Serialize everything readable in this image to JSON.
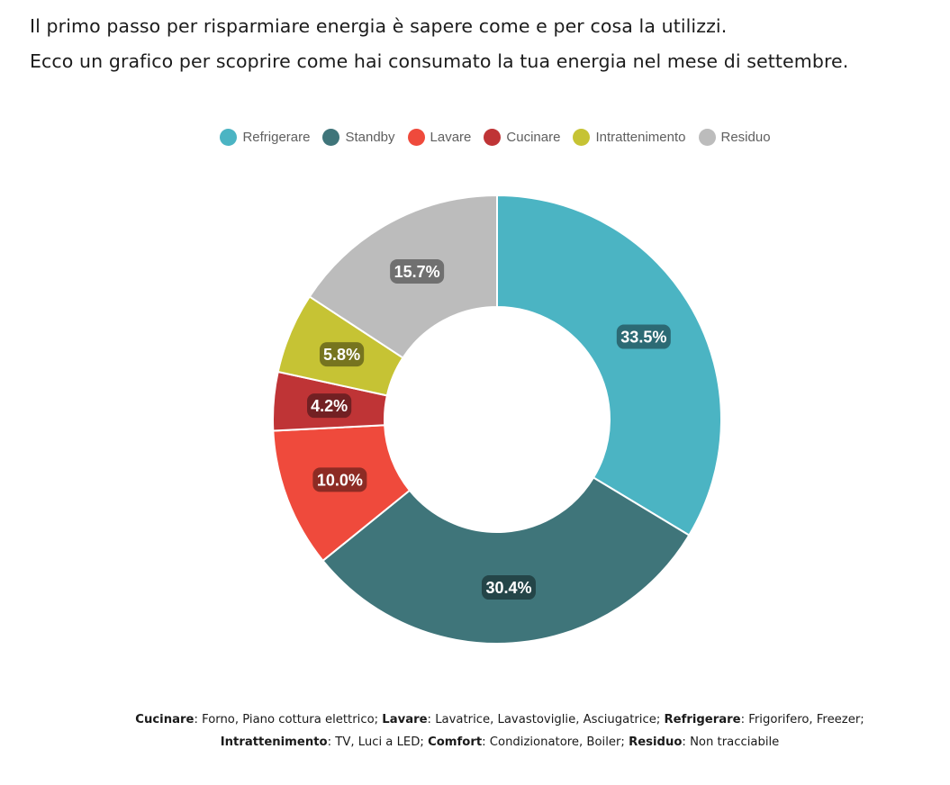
{
  "intro": {
    "line1": "Il primo passo per risparmiare energia è sapere come e per cosa la utilizzi.",
    "line2": "Ecco un grafico per scoprire come hai consumato la tua energia nel mese di settembre."
  },
  "legend": [
    {
      "label": "Refrigerare",
      "color": "#4bb4c3"
    },
    {
      "label": "Standby",
      "color": "#3f757a"
    },
    {
      "label": "Lavare",
      "color": "#ef4a3c"
    },
    {
      "label": "Cucinare",
      "color": "#bf3436"
    },
    {
      "label": "Intrattenimento",
      "color": "#c6c334"
    },
    {
      "label": "Residuo",
      "color": "#bcbcbc"
    }
  ],
  "chart_data": {
    "type": "pie",
    "title": "",
    "legend_position": "top",
    "series": [
      {
        "label": "Refrigerare",
        "value": 33.5,
        "display": "33.5%",
        "color": "#4bb4c3",
        "badge_color": "#2c6a74"
      },
      {
        "label": "Standby",
        "value": 30.4,
        "display": "30.4%",
        "color": "#3f757a",
        "badge_color": "#244548"
      },
      {
        "label": "Lavare",
        "value": 10.0,
        "display": "10.0%",
        "color": "#ef4a3c",
        "badge_color": "#8d2b24"
      },
      {
        "label": "Cucinare",
        "value": 4.2,
        "display": "4.2%",
        "color": "#bf3436",
        "badge_color": "#722023"
      },
      {
        "label": "Intrattenimento",
        "value": 5.8,
        "display": "5.8%",
        "color": "#c6c334",
        "badge_color": "#76741f"
      },
      {
        "label": "Residuo",
        "value": 15.7,
        "display": "15.7%",
        "color": "#bcbcbc",
        "badge_color": "#707070"
      }
    ]
  },
  "footnote": {
    "line1": [
      {
        "term": "Cucinare",
        "desc": "Forno, Piano cottura elettrico;"
      },
      {
        "term": "Lavare",
        "desc": "Lavatrice, Lavastoviglie, Asciugatrice;"
      },
      {
        "term": "Refrigerare",
        "desc": "Frigorifero, Freezer;"
      }
    ],
    "line2": [
      {
        "term": "Intrattenimento",
        "desc": "TV, Luci a LED;"
      },
      {
        "term": "Comfort",
        "desc": "Condizionatore, Boiler;"
      },
      {
        "term": "Residuo",
        "desc": "Non tracciabile"
      }
    ]
  }
}
